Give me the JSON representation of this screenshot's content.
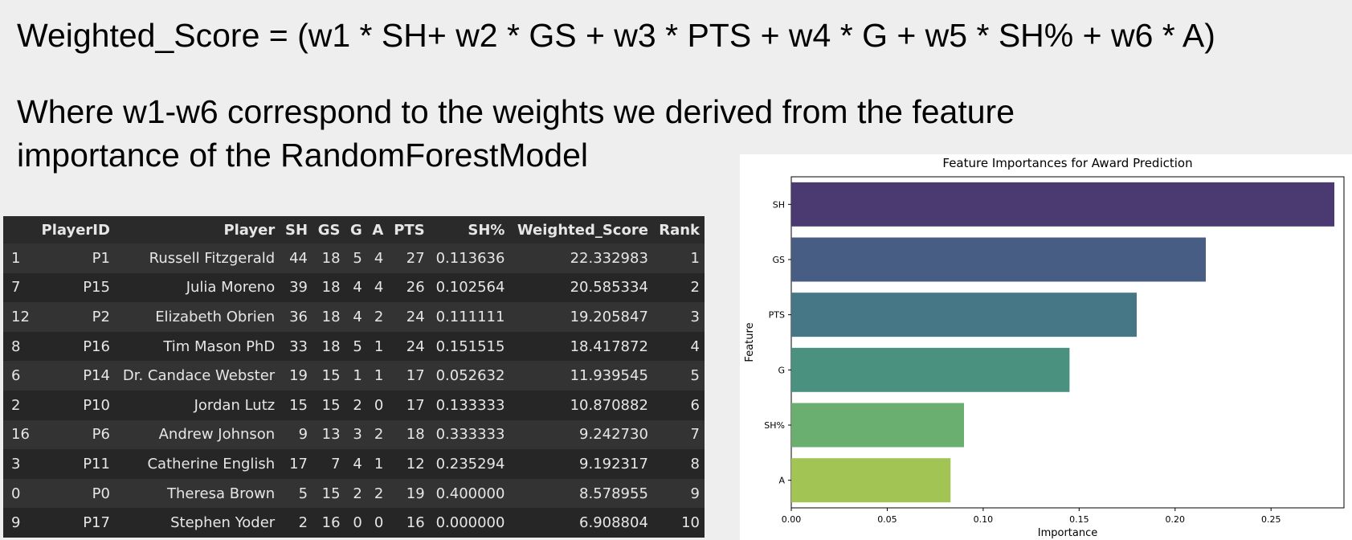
{
  "formula": "Weighted_Score = (w1 * SH+ w2 * GS + w3 * PTS + w4 * G + w5 * SH% + w6 * A)",
  "description": "Where w1-w6 correspond to the weights we derived from the feature importance of the RandomForestModel",
  "table": {
    "columns": [
      "",
      "PlayerID",
      "Player",
      "SH",
      "GS",
      "G",
      "A",
      "PTS",
      "SH%",
      "Weighted_Score",
      "Rank"
    ],
    "rows": [
      [
        "1",
        "P1",
        "Russell Fitzgerald",
        "44",
        "18",
        "5",
        "4",
        "27",
        "0.113636",
        "22.332983",
        "1"
      ],
      [
        "7",
        "P15",
        "Julia Moreno",
        "39",
        "18",
        "4",
        "4",
        "26",
        "0.102564",
        "20.585334",
        "2"
      ],
      [
        "12",
        "P2",
        "Elizabeth Obrien",
        "36",
        "18",
        "4",
        "2",
        "24",
        "0.111111",
        "19.205847",
        "3"
      ],
      [
        "8",
        "P16",
        "Tim Mason PhD",
        "33",
        "18",
        "5",
        "1",
        "24",
        "0.151515",
        "18.417872",
        "4"
      ],
      [
        "6",
        "P14",
        "Dr. Candace Webster",
        "19",
        "15",
        "1",
        "1",
        "17",
        "0.052632",
        "11.939545",
        "5"
      ],
      [
        "2",
        "P10",
        "Jordan Lutz",
        "15",
        "15",
        "2",
        "0",
        "17",
        "0.133333",
        "10.870882",
        "6"
      ],
      [
        "16",
        "P6",
        "Andrew Johnson",
        "9",
        "13",
        "3",
        "2",
        "18",
        "0.333333",
        "9.242730",
        "7"
      ],
      [
        "3",
        "P11",
        "Catherine English",
        "17",
        "7",
        "4",
        "1",
        "12",
        "0.235294",
        "9.192317",
        "8"
      ],
      [
        "0",
        "P0",
        "Theresa Brown",
        "5",
        "15",
        "2",
        "2",
        "19",
        "0.400000",
        "8.578955",
        "9"
      ],
      [
        "9",
        "P17",
        "Stephen Yoder",
        "2",
        "16",
        "0",
        "0",
        "16",
        "0.000000",
        "6.908804",
        "10"
      ]
    ]
  },
  "chart_data": {
    "type": "bar",
    "orientation": "horizontal",
    "title": "Feature Importances for Award Prediction",
    "xlabel": "Importance",
    "ylabel": "Feature",
    "categories": [
      "SH",
      "GS",
      "PTS",
      "G",
      "SH%",
      "A"
    ],
    "values": [
      0.283,
      0.216,
      0.18,
      0.145,
      0.09,
      0.083
    ],
    "colors": [
      "#4b3a72",
      "#485d84",
      "#457787",
      "#4a9180",
      "#6aae70",
      "#a1c455"
    ],
    "xlim": [
      0,
      0.288
    ],
    "xticks": [
      "0.00",
      "0.05",
      "0.10",
      "0.15",
      "0.20",
      "0.25"
    ],
    "grid": false
  }
}
